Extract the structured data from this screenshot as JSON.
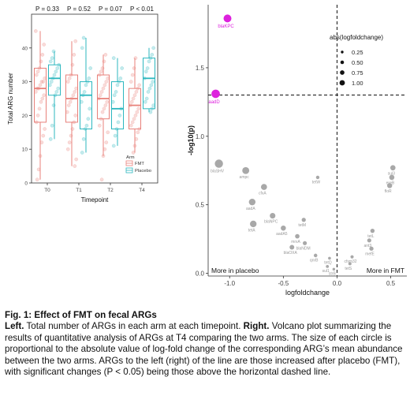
{
  "chart_data": [
    {
      "type": "box",
      "ylabel": "Total ARG number",
      "xlabel": "Timepoint",
      "categories": [
        "T0",
        "T1",
        "T2",
        "T4"
      ],
      "ylim": [
        0,
        50
      ],
      "yticks": [
        0,
        10,
        20,
        30,
        40
      ],
      "pvalues": [
        "P = 0.33",
        "P = 0.52",
        "P = 0.07",
        "P < 0.01"
      ],
      "legend": {
        "title": "Arm",
        "position": "bottom-right",
        "entries": [
          "FMT",
          "Placebo"
        ]
      },
      "colors": {
        "FMT": "#e8817b",
        "Placebo": "#2cb7bf"
      },
      "series": [
        {
          "name": "FMT",
          "boxes": [
            {
              "min": 1,
              "q1": 18,
              "median": 28,
              "q3": 34,
              "max": 45
            },
            {
              "min": 5,
              "q1": 18,
              "median": 25,
              "q3": 32,
              "max": 42
            },
            {
              "min": 8,
              "q1": 19,
              "median": 25,
              "q3": 32,
              "max": 38
            },
            {
              "min": 9,
              "q1": 16,
              "median": 23,
              "q3": 28,
              "max": 37
            }
          ]
        },
        {
          "name": "Placebo",
          "boxes": [
            {
              "min": 13,
              "q1": 26,
              "median": 31,
              "q3": 35,
              "max": 39
            },
            {
              "min": 9,
              "q1": 16,
              "median": 26,
              "q3": 30,
              "max": 43
            },
            {
              "min": 11,
              "q1": 16,
              "median": 22,
              "q3": 30,
              "max": 37
            },
            {
              "min": 21,
              "q1": 22,
              "median": 31,
              "q3": 37,
              "max": 40
            }
          ]
        }
      ],
      "points": {
        "FMT": [
          [
            45,
            41,
            38,
            36,
            34,
            33,
            32,
            31,
            30,
            30,
            29,
            28,
            28,
            27,
            26,
            25,
            24,
            22,
            20,
            18,
            16,
            14,
            12,
            8,
            4,
            1
          ],
          [
            42,
            38,
            35,
            32,
            31,
            30,
            28,
            27,
            26,
            25,
            24,
            23,
            21,
            20,
            18,
            16,
            14,
            12,
            10,
            7,
            5
          ],
          [
            38,
            36,
            34,
            33,
            32,
            31,
            30,
            29,
            28,
            27,
            26,
            25,
            24,
            23,
            22,
            21,
            19,
            17,
            15,
            12,
            10,
            8,
            1
          ],
          [
            37,
            34,
            32,
            30,
            29,
            28,
            27,
            26,
            25,
            24,
            23,
            22,
            21,
            20,
            19,
            18,
            17,
            16,
            15,
            13,
            11,
            9
          ]
        ],
        "Placebo": [
          [
            39,
            37,
            36,
            35,
            34,
            33,
            32,
            31,
            30,
            29,
            28,
            27,
            26,
            23,
            17,
            13
          ],
          [
            43,
            40,
            34,
            31,
            30,
            29,
            27,
            26,
            24,
            22,
            19,
            17,
            16,
            13,
            9
          ],
          [
            37,
            34,
            31,
            30,
            29,
            27,
            26,
            24,
            22,
            20,
            18,
            16,
            14,
            11
          ],
          [
            40,
            38,
            37,
            36,
            34,
            33,
            31,
            30,
            29,
            28,
            27,
            25,
            24,
            23,
            22,
            21
          ]
        ]
      }
    },
    {
      "type": "scatter",
      "xlabel": "logfoldchange",
      "ylabel": "-log10(p)",
      "xlim": [
        -1.2,
        0.65
      ],
      "ylim": [
        -0.02,
        1.96
      ],
      "xticks": [
        -1.0,
        -0.5,
        0.0,
        0.5
      ],
      "xtick_labels": [
        "-1.0",
        "-0.5",
        "0.0",
        "0.5"
      ],
      "yticks": [
        0.0,
        0.5,
        1.0,
        1.5
      ],
      "ytick_labels": [
        "0.0",
        "0.5",
        "1.0",
        "1.5"
      ],
      "hline": 1.301,
      "vline": 0.0,
      "annotations": {
        "left": "More in placebo",
        "right": "More in FMT"
      },
      "legend": {
        "title": "abs(logfoldchange)",
        "position": "top-right",
        "sizes": [
          "0.25",
          "0.50",
          "0.75",
          "1.00"
        ]
      },
      "colors": {
        "significant": "#dd22dd",
        "other": "#a8a8a8"
      },
      "points": [
        {
          "label": "blaKPC",
          "x": -1.02,
          "y": 1.86,
          "size": 1.02,
          "sig": true
        },
        {
          "label": "aadD",
          "x": -1.13,
          "y": 1.31,
          "size": 1.13,
          "sig": true
        },
        {
          "label": "blaSHV",
          "x": -1.1,
          "y": 0.8,
          "size": 1.1,
          "sig": false
        },
        {
          "label": "ampc",
          "x": -0.85,
          "y": 0.75,
          "size": 0.85,
          "sig": false
        },
        {
          "label": "cfxA",
          "x": -0.68,
          "y": 0.63,
          "size": 0.68,
          "sig": false
        },
        {
          "label": "aadA",
          "x": -0.79,
          "y": 0.52,
          "size": 0.79,
          "sig": false
        },
        {
          "label": "blaNPC",
          "x": -0.6,
          "y": 0.42,
          "size": 0.6,
          "sig": false
        },
        {
          "label": "tetA",
          "x": -0.78,
          "y": 0.36,
          "size": 0.78,
          "sig": false
        },
        {
          "label": "tetW",
          "x": -0.18,
          "y": 0.7,
          "size": 0.18,
          "sig": false
        },
        {
          "label": "tetM",
          "x": -0.31,
          "y": 0.39,
          "size": 0.31,
          "sig": false
        },
        {
          "label": "aadA5",
          "x": -0.5,
          "y": 0.33,
          "size": 0.5,
          "sig": false
        },
        {
          "label": "mrxA",
          "x": -0.37,
          "y": 0.27,
          "size": 0.37,
          "sig": false
        },
        {
          "label": "blaNDM",
          "x": -0.3,
          "y": 0.22,
          "size": 0.3,
          "sig": false
        },
        {
          "label": "blaOXA",
          "x": -0.42,
          "y": 0.19,
          "size": 0.42,
          "sig": false
        },
        {
          "label": "qnrB",
          "x": -0.2,
          "y": 0.13,
          "size": 0.2,
          "sig": false
        },
        {
          "label": "tetQ",
          "x": -0.07,
          "y": 0.11,
          "size": 0.07,
          "sig": false
        },
        {
          "label": "sul1",
          "x": -0.09,
          "y": 0.05,
          "size": 0.09,
          "sig": false
        },
        {
          "label": "strB",
          "x": -0.03,
          "y": 0.03,
          "size": 0.03,
          "sig": false
        },
        {
          "label": "sul3",
          "x": 0.52,
          "y": 0.77,
          "size": 0.52,
          "sig": false
        },
        {
          "label": "ereB",
          "x": 0.51,
          "y": 0.7,
          "size": 0.51,
          "sig": false
        },
        {
          "label": "floR",
          "x": 0.49,
          "y": 0.64,
          "size": 0.49,
          "sig": false
        },
        {
          "label": "tetL",
          "x": 0.33,
          "y": 0.31,
          "size": 0.33,
          "sig": false
        },
        {
          "label": "ant3",
          "x": 0.3,
          "y": 0.24,
          "size": 0.3,
          "sig": false
        },
        {
          "label": "mefE",
          "x": 0.32,
          "y": 0.18,
          "size": 0.32,
          "sig": false
        },
        {
          "label": "cfxm32",
          "x": 0.14,
          "y": 0.12,
          "size": 0.14,
          "sig": false
        },
        {
          "label": "tetS",
          "x": 0.12,
          "y": 0.07,
          "size": 0.12,
          "sig": false
        }
      ]
    }
  ],
  "caption": {
    "title": "Fig. 1: Effect of FMT on fecal ARGs",
    "left_label": "Left.",
    "left_text": " Total number of ARGs in each arm at each timepoint. ",
    "right_label": "Right.",
    "right_text": " Volcano plot summarizing the results of quantitative analysis of ARGs at T4 comparing the two arms. The size of each circle is proportional to the absolute value of log-fold change of the corresponding ARG’s mean abundance between the two arms. ARGs to the left (right) of the line are those increased after placebo (FMT), with significant changes (P < 0.05) being those above the horizontal dashed line."
  }
}
